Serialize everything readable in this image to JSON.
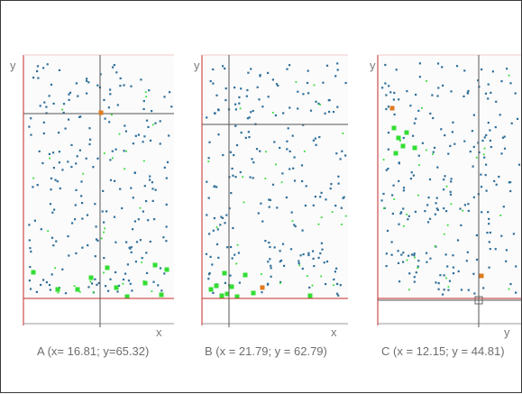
{
  "panels": [
    {
      "id": "A",
      "axis_x_label": "x",
      "axis_y_label": "y",
      "caption": "A (x= 16.81; y=65.32)",
      "crosshair": {
        "x": 16.81,
        "y": 65.32
      },
      "colors": {
        "axis": "#c62828",
        "crosshair": "#555555",
        "point": "#2f6f9a",
        "highlight": "#33dd33",
        "selected": "#e07a1f"
      }
    },
    {
      "id": "B",
      "axis_x_label": "x",
      "axis_y_label": "y",
      "caption": "B (x = 21.79; y = 62.79)",
      "crosshair": {
        "x": 21.79,
        "y": 62.79
      },
      "colors": {
        "axis": "#c62828",
        "crosshair": "#555555",
        "point": "#2f6f9a",
        "highlight": "#33dd33",
        "selected": "#e07a1f"
      }
    },
    {
      "id": "C",
      "axis_x_label": "y",
      "axis_y_label": "y",
      "caption": "C (x = 12.15;  y = 44.81)",
      "crosshair": {
        "x": 12.15,
        "y": 44.81
      },
      "colors": {
        "axis": "#c62828",
        "crosshair": "#555555",
        "point": "#2f6f9a",
        "highlight": "#33dd33",
        "selected": "#e07a1f"
      }
    }
  ]
}
